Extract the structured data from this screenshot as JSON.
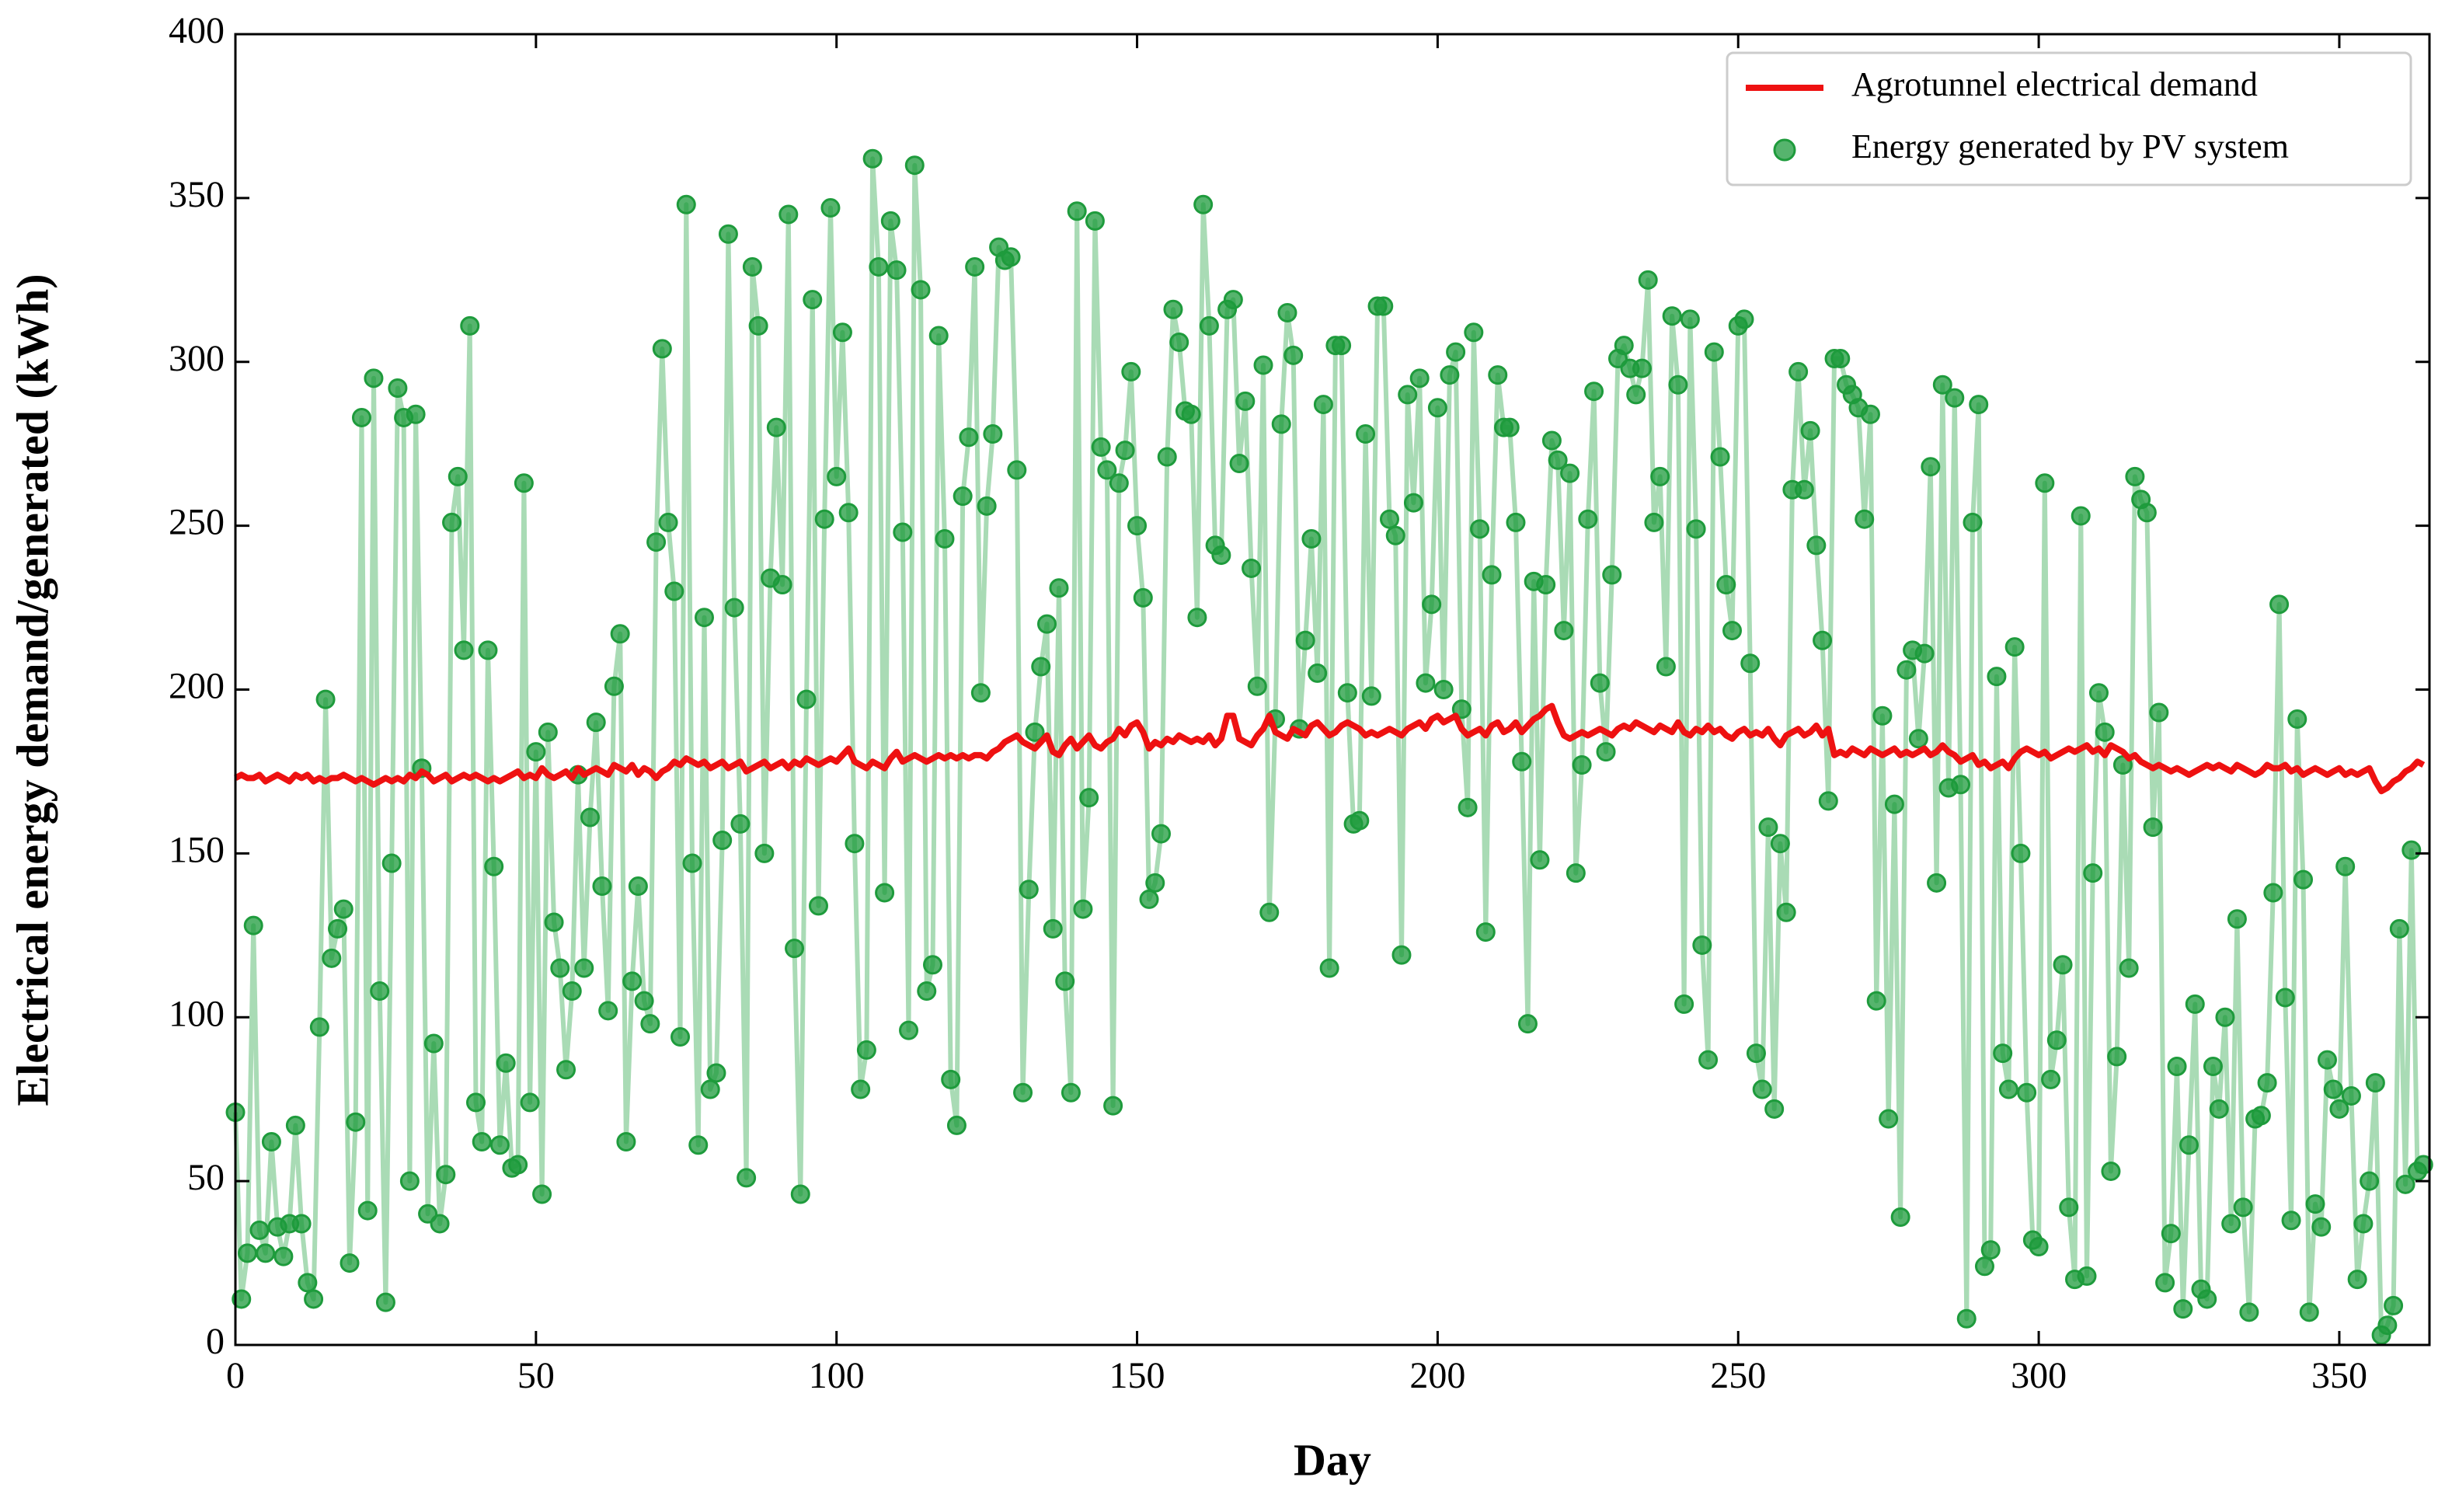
{
  "chart_data": {
    "type": "line",
    "xlabel": "Day",
    "ylabel": "Electrical energy demand/generated (kWh)",
    "xlim": [
      0,
      365
    ],
    "ylim": [
      0,
      400
    ],
    "xticks": [
      0,
      50,
      100,
      150,
      200,
      250,
      300,
      350
    ],
    "yticks": [
      0,
      50,
      100,
      150,
      200,
      250,
      300,
      350,
      400
    ],
    "grid": false,
    "legend": "upper right",
    "x": [
      0,
      1,
      2,
      3,
      4,
      5,
      6,
      7,
      8,
      9,
      10,
      11,
      12,
      13,
      14,
      15,
      16,
      17,
      18,
      19,
      20,
      21,
      22,
      23,
      24,
      25,
      26,
      27,
      28,
      29,
      30,
      31,
      32,
      33,
      34,
      35,
      36,
      37,
      38,
      39,
      40,
      41,
      42,
      43,
      44,
      45,
      46,
      47,
      48,
      49,
      50,
      51,
      52,
      53,
      54,
      55,
      56,
      57,
      58,
      59,
      60,
      61,
      62,
      63,
      64,
      65,
      66,
      67,
      68,
      69,
      70,
      71,
      72,
      73,
      74,
      75,
      76,
      77,
      78,
      79,
      80,
      81,
      82,
      83,
      84,
      85,
      86,
      87,
      88,
      89,
      90,
      91,
      92,
      93,
      94,
      95,
      96,
      97,
      98,
      99,
      100,
      101,
      102,
      103,
      104,
      105,
      106,
      107,
      108,
      109,
      110,
      111,
      112,
      113,
      114,
      115,
      116,
      117,
      118,
      119,
      120,
      121,
      122,
      123,
      124,
      125,
      126,
      127,
      128,
      129,
      130,
      131,
      132,
      133,
      134,
      135,
      136,
      137,
      138,
      139,
      140,
      141,
      142,
      143,
      144,
      145,
      146,
      147,
      148,
      149,
      150,
      151,
      152,
      153,
      154,
      155,
      156,
      157,
      158,
      159,
      160,
      161,
      162,
      163,
      164,
      165,
      166,
      167,
      168,
      169,
      170,
      171,
      172,
      173,
      174,
      175,
      176,
      177,
      178,
      179,
      180,
      181,
      182,
      183,
      184,
      185,
      186,
      187,
      188,
      189,
      190,
      191,
      192,
      193,
      194,
      195,
      196,
      197,
      198,
      199,
      200,
      201,
      202,
      203,
      204,
      205,
      206,
      207,
      208,
      209,
      210,
      211,
      212,
      213,
      214,
      215,
      216,
      217,
      218,
      219,
      220,
      221,
      222,
      223,
      224,
      225,
      226,
      227,
      228,
      229,
      230,
      231,
      232,
      233,
      234,
      235,
      236,
      237,
      238,
      239,
      240,
      241,
      242,
      243,
      244,
      245,
      246,
      247,
      248,
      249,
      250,
      251,
      252,
      253,
      254,
      255,
      256,
      257,
      258,
      259,
      260,
      261,
      262,
      263,
      264,
      265,
      266,
      267,
      268,
      269,
      270,
      271,
      272,
      273,
      274,
      275,
      276,
      277,
      278,
      279,
      280,
      281,
      282,
      283,
      284,
      285,
      286,
      287,
      288,
      289,
      290,
      291,
      292,
      293,
      294,
      295,
      296,
      297,
      298,
      299,
      300,
      301,
      302,
      303,
      304,
      305,
      306,
      307,
      308,
      309,
      310,
      311,
      312,
      313,
      314,
      315,
      316,
      317,
      318,
      319,
      320,
      321,
      322,
      323,
      324,
      325,
      326,
      327,
      328,
      329,
      330,
      331,
      332,
      333,
      334,
      335,
      336,
      337,
      338,
      339,
      340,
      341,
      342,
      343,
      344,
      345,
      346,
      347,
      348,
      349,
      350,
      351,
      352,
      353,
      354,
      355,
      356,
      357,
      358,
      359,
      360,
      361,
      362,
      363,
      364
    ],
    "series": [
      {
        "name": "Agrotunnel electrical demand",
        "color": "#ee1111",
        "style": "line",
        "values": [
          173,
          174,
          173,
          173,
          174,
          172,
          173,
          174,
          173,
          172,
          174,
          173,
          174,
          172,
          173,
          172,
          173,
          173,
          174,
          173,
          172,
          173,
          172,
          171,
          172,
          173,
          172,
          173,
          172,
          174,
          173,
          175,
          174,
          172,
          173,
          174,
          172,
          173,
          174,
          173,
          174,
          173,
          172,
          173,
          172,
          173,
          174,
          175,
          173,
          174,
          173,
          176,
          174,
          173,
          174,
          175,
          173,
          176,
          174,
          175,
          176,
          175,
          174,
          177,
          176,
          175,
          177,
          174,
          176,
          175,
          173,
          175,
          176,
          178,
          177,
          179,
          178,
          177,
          178,
          176,
          177,
          178,
          176,
          177,
          178,
          175,
          176,
          177,
          178,
          176,
          177,
          178,
          176,
          178,
          177,
          179,
          178,
          177,
          178,
          179,
          178,
          180,
          182,
          178,
          177,
          176,
          178,
          177,
          176,
          179,
          181,
          178,
          179,
          180,
          179,
          178,
          179,
          180,
          179,
          180,
          179,
          180,
          179,
          180,
          180,
          179,
          181,
          182,
          184,
          185,
          186,
          184,
          183,
          182,
          184,
          186,
          181,
          180,
          183,
          185,
          182,
          184,
          186,
          183,
          182,
          184,
          185,
          188,
          186,
          189,
          190,
          187,
          182,
          184,
          183,
          185,
          184,
          186,
          185,
          184,
          185,
          184,
          186,
          183,
          185,
          192,
          192,
          185,
          184,
          183,
          186,
          188,
          192,
          187,
          186,
          185,
          188,
          187,
          186,
          189,
          190,
          188,
          186,
          187,
          189,
          190,
          189,
          188,
          186,
          187,
          186,
          187,
          188,
          187,
          186,
          188,
          189,
          190,
          188,
          191,
          192,
          190,
          191,
          192,
          188,
          186,
          187,
          188,
          186,
          189,
          190,
          187,
          188,
          190,
          187,
          189,
          191,
          192,
          194,
          195,
          190,
          186,
          185,
          186,
          187,
          186,
          187,
          188,
          187,
          186,
          188,
          189,
          188,
          190,
          189,
          188,
          187,
          189,
          188,
          187,
          190,
          187,
          186,
          188,
          187,
          189,
          187,
          188,
          186,
          185,
          187,
          188,
          186,
          187,
          186,
          188,
          185,
          183,
          186,
          187,
          188,
          186,
          187,
          189,
          186,
          188,
          180,
          181,
          180,
          182,
          181,
          180,
          182,
          181,
          180,
          181,
          182,
          180,
          181,
          180,
          181,
          182,
          180,
          181,
          183,
          181,
          180,
          178,
          179,
          180,
          177,
          178,
          176,
          177,
          178,
          176,
          179,
          181,
          182,
          181,
          180,
          181,
          179,
          180,
          181,
          182,
          181,
          182,
          183,
          181,
          182,
          180,
          183,
          182,
          181,
          179,
          180,
          178,
          177,
          176,
          177,
          176,
          175,
          176,
          175,
          174,
          175,
          176,
          177,
          176,
          177,
          176,
          175,
          177,
          176,
          175,
          174,
          175,
          177,
          176,
          176,
          177,
          175,
          176,
          174,
          175,
          176,
          175,
          174,
          175,
          176,
          174,
          175,
          174,
          175,
          176,
          172,
          169,
          170,
          172,
          173,
          175,
          176,
          178,
          177
        ]
      },
      {
        "name": "Energy generated by PV system",
        "color": "#1e9b3c",
        "line_color": "#a9dbb5",
        "style": "line-markers",
        "values": [
          71,
          14,
          28,
          128,
          35,
          28,
          62,
          36,
          27,
          37,
          67,
          37,
          19,
          14,
          97,
          197,
          118,
          127,
          133,
          25,
          68,
          283,
          41,
          295,
          108,
          13,
          147,
          292,
          283,
          50,
          284,
          176,
          40,
          92,
          37,
          52,
          251,
          265,
          212,
          311,
          74,
          62,
          212,
          146,
          61,
          86,
          54,
          55,
          263,
          74,
          181,
          46,
          187,
          129,
          115,
          84,
          108,
          174,
          115,
          161,
          190,
          140,
          102,
          201,
          217,
          62,
          111,
          140,
          105,
          98,
          245,
          304,
          251,
          230,
          94,
          348,
          147,
          61,
          222,
          78,
          83,
          154,
          339,
          225,
          159,
          51,
          329,
          311,
          150,
          234,
          280,
          232,
          345,
          121,
          46,
          197,
          319,
          134,
          252,
          347,
          265,
          309,
          254,
          153,
          78,
          90,
          362,
          329,
          138,
          343,
          328,
          248,
          96,
          360,
          322,
          108,
          116,
          308,
          246,
          81,
          67,
          259,
          277,
          329,
          199,
          256,
          278,
          335,
          331,
          332,
          267,
          77,
          139,
          187,
          207,
          220,
          127,
          231,
          111,
          77,
          346,
          133,
          167,
          343,
          274,
          267,
          73,
          263,
          273,
          297,
          250,
          228,
          136,
          141,
          156,
          271,
          316,
          306,
          285,
          284,
          222,
          348,
          311,
          244,
          241,
          316,
          319,
          269,
          288,
          237,
          201,
          299,
          132,
          191,
          281,
          315,
          302,
          188,
          215,
          246,
          205,
          287,
          115,
          305,
          305,
          199,
          159,
          160,
          278,
          198,
          317,
          317,
          252,
          247,
          119,
          290,
          257,
          295,
          202,
          226,
          286,
          200,
          296,
          303,
          194,
          164,
          309,
          249,
          126,
          235,
          296,
          280,
          280,
          251,
          178,
          98,
          233,
          148,
          232,
          276,
          270,
          218,
          266,
          144,
          177,
          252,
          291,
          202,
          181,
          235,
          301,
          305,
          298,
          290,
          298,
          325,
          251,
          265,
          207,
          314,
          293,
          104,
          313,
          249,
          122,
          87,
          303,
          271,
          232,
          218,
          311,
          313,
          208,
          89,
          78,
          158,
          72,
          153,
          132,
          261,
          297,
          261,
          279,
          244,
          215,
          166,
          301,
          301,
          293,
          290,
          286,
          252,
          284,
          105,
          192,
          69,
          165,
          39,
          206,
          212,
          185,
          211,
          268,
          141,
          293,
          170,
          289,
          171,
          8,
          251,
          287,
          24,
          29,
          204,
          89,
          78,
          213,
          150,
          77,
          32,
          30,
          263,
          81,
          93,
          116,
          42,
          20,
          253,
          21,
          144,
          199,
          187,
          53,
          88,
          177,
          115,
          265,
          258,
          254,
          158,
          193,
          19,
          34,
          85,
          11,
          61,
          104,
          17,
          14,
          85,
          72,
          100,
          37,
          130,
          42,
          10,
          69,
          70,
          80,
          138,
          226,
          106,
          38,
          191,
          142,
          10,
          43,
          36,
          87,
          78,
          72,
          146,
          76,
          20,
          37,
          50,
          80,
          3,
          6,
          12,
          127,
          49,
          151,
          53,
          55
        ]
      }
    ]
  }
}
